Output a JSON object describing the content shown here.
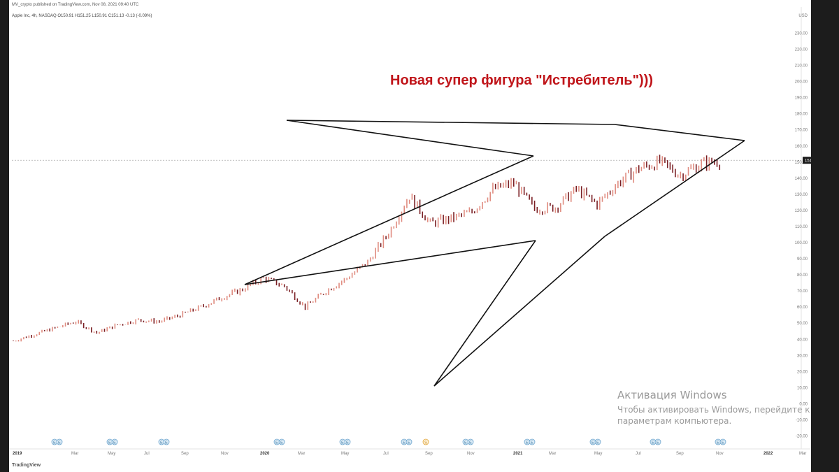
{
  "header": {
    "published": "MV_crypto published on TradingView.com, Nov 08, 2021 09:40 UTC",
    "symbol_line": "Apple Inc, 4h, NASDAQ O150.91 H151.25 L150.91 C151.13 -0.13 (-0.09%)"
  },
  "annotation": "Новая супер фигура \"Истребитель\")))",
  "watermark": {
    "title": "Активация Windows",
    "line1": "Чтобы активировать Windows, перейдите к",
    "line2": "параметрам компьютера."
  },
  "footer": {
    "logo": "TradingView"
  },
  "colors": {
    "accent_red": "#c0151a",
    "candle_up": "#e08c80",
    "candle_down": "#7a1f24",
    "drawing": "#111111",
    "price_label_bg": "#1a1a1a"
  },
  "chart_data": {
    "type": "line",
    "title": "",
    "xlabel": "",
    "ylabel": "",
    "currency": "USD",
    "ylim": [
      -20,
      240
    ],
    "y_ticks": [
      "-20.00",
      "-10.00",
      "0.00",
      "10.00",
      "20.00",
      "30.00",
      "40.00",
      "50.00",
      "60.00",
      "70.00",
      "80.00",
      "90.00",
      "100.00",
      "110.00",
      "120.00",
      "130.00",
      "140.00",
      "150.00",
      "160.00",
      "170.00",
      "180.00",
      "190.00",
      "200.00",
      "210.00",
      "220.00",
      "230.00"
    ],
    "x_ticks": [
      "2019",
      "Mar",
      "May",
      "Jul",
      "Sep",
      "Nov",
      "2020",
      "Mar",
      "May",
      "Jul",
      "Sep",
      "Nov",
      "2021",
      "Mar",
      "May",
      "Jul",
      "Sep",
      "Nov",
      "2022",
      "Mar"
    ],
    "last_price_label": "151.13",
    "last_price": 151.13,
    "series": [
      {
        "x": [
          "2019-01",
          "2019-02",
          "2019-03",
          "2019-04",
          "2019-05",
          "2019-06",
          "2019-07",
          "2019-08",
          "2019-09",
          "2019-10",
          "2019-11",
          "2019-12",
          "2020-01",
          "2020-02",
          "2020-03",
          "2020-04",
          "2020-05",
          "2020-06",
          "2020-07",
          "2020-08",
          "2020-09",
          "2020-10",
          "2020-11",
          "2020-12",
          "2021-01",
          "2021-02",
          "2021-03",
          "2021-04",
          "2021-05",
          "2021-06",
          "2021-07",
          "2021-08",
          "2021-09",
          "2021-10",
          "2021-11"
        ],
        "values": [
          39,
          43,
          47,
          51,
          44,
          49,
          52,
          51,
          55,
          60,
          66,
          71,
          78,
          73,
          60,
          70,
          78,
          88,
          106,
          129,
          112,
          115,
          119,
          133,
          137,
          121,
          122,
          133,
          124,
          137,
          146,
          150,
          142,
          149,
          151
        ]
      }
    ],
    "earnings_markers": [
      "E",
      "E",
      "E",
      "E",
      "E",
      "E",
      "E",
      "E",
      "E",
      "E",
      "E",
      "E",
      "E",
      "E",
      "E",
      "E",
      "E"
    ],
    "dividend_marker": "S",
    "grid": false,
    "legend": "none"
  }
}
